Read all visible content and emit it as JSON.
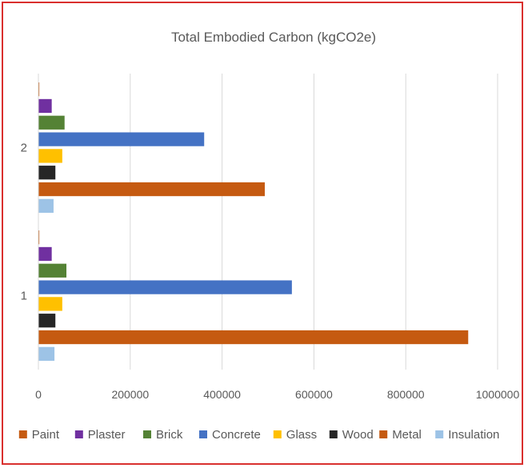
{
  "chart_data": {
    "type": "bar",
    "orientation": "horizontal",
    "title": "Total Embodied Carbon (kgCO2e)",
    "categories": [
      "1",
      "2"
    ],
    "xlim": [
      0,
      1000000
    ],
    "x_ticks": [
      "0",
      "200000",
      "400000",
      "600000",
      "800000",
      "1000000"
    ],
    "grid": "vertical",
    "legend_position": "bottom",
    "series": [
      {
        "name": "Paint",
        "color": "#c55a11",
        "values": [
          2000,
          2000
        ]
      },
      {
        "name": "Plaster",
        "color": "#7030a0",
        "values": [
          29000,
          29000
        ]
      },
      {
        "name": "Brick",
        "color": "#548235",
        "values": [
          61000,
          57000
        ]
      },
      {
        "name": "Concrete",
        "color": "#4472c4",
        "values": [
          552000,
          361000
        ]
      },
      {
        "name": "Glass",
        "color": "#ffc000",
        "values": [
          52000,
          52000
        ]
      },
      {
        "name": "Wood",
        "color": "#262626",
        "values": [
          37000,
          37000
        ]
      },
      {
        "name": "Metal",
        "color": "#c55a11",
        "values": [
          936000,
          493000
        ]
      },
      {
        "name": "Insulation",
        "color": "#9dc3e6",
        "values": [
          35000,
          33000
        ]
      }
    ]
  }
}
